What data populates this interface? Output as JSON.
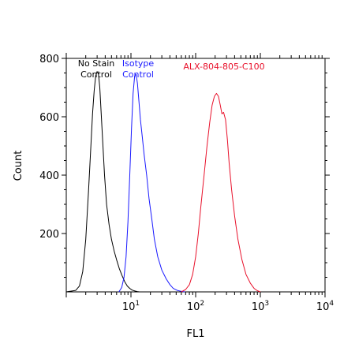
{
  "chart_data": {
    "type": "line",
    "title": "",
    "xlabel": "FL1",
    "ylabel": "Count",
    "x_scale": "log",
    "xlim": [
      1,
      10000
    ],
    "ylim": [
      0,
      800
    ],
    "x_ticks": [
      10,
      100,
      1000,
      10000
    ],
    "y_ticks": [
      200,
      400,
      600,
      800
    ],
    "y_tick_labels": [
      "200",
      "400",
      "600",
      "800"
    ],
    "x_tick_labels": [
      {
        "base": "10",
        "exp": "1"
      },
      {
        "base": "10",
        "exp": "2"
      },
      {
        "base": "10",
        "exp": "3"
      },
      {
        "base": "10",
        "exp": "4"
      }
    ],
    "grid": false,
    "annotations": [
      {
        "lines": [
          "No Stain",
          "Control"
        ],
        "color": "#000000"
      },
      {
        "lines": [
          "Isotype",
          "Control"
        ],
        "color": "#1a1aff"
      },
      {
        "lines": [
          "ALX-804-805-C100"
        ],
        "color": "#e8102a"
      }
    ],
    "series": [
      {
        "color": "#000000",
        "x": [
          1.0,
          1.4,
          1.6,
          1.8,
          2.0,
          2.2,
          2.4,
          2.55,
          2.7,
          2.85,
          3.0,
          3.15,
          3.3,
          3.45,
          3.65,
          3.9,
          4.2,
          4.6,
          5.0,
          5.5,
          6.0,
          6.6,
          7.3,
          8.0,
          8.8,
          9.6,
          10.5,
          11.5,
          12.5,
          13.5
        ],
        "y": [
          0,
          5,
          20,
          70,
          180,
          340,
          500,
          610,
          690,
          740,
          755,
          745,
          700,
          620,
          520,
          400,
          300,
          230,
          180,
          140,
          110,
          80,
          55,
          35,
          20,
          12,
          6,
          3,
          1,
          0
        ]
      },
      {
        "color": "#1a1aff",
        "x": [
          6.5,
          7.2,
          7.8,
          8.4,
          9.0,
          9.6,
          10.2,
          10.8,
          11.4,
          12.0,
          12.6,
          13.3,
          14.0,
          15.0,
          16.0,
          17.5,
          19.0,
          21.0,
          23.0,
          26.0,
          30.0,
          35.0,
          40.0,
          45.0,
          52.0,
          60.0,
          68.0
        ],
        "y": [
          0,
          15,
          50,
          120,
          240,
          400,
          560,
          680,
          740,
          745,
          715,
          650,
          590,
          530,
          470,
          400,
          320,
          250,
          180,
          120,
          75,
          45,
          25,
          12,
          5,
          2,
          0
        ]
      },
      {
        "color": "#e8102a",
        "x": [
          60,
          70,
          80,
          90,
          100,
          110,
          120,
          135,
          150,
          165,
          180,
          195,
          210,
          225,
          240,
          255,
          270,
          290,
          310,
          330,
          360,
          400,
          450,
          520,
          600,
          700,
          800,
          900,
          1000
        ],
        "y": [
          0,
          8,
          25,
          60,
          120,
          200,
          290,
          400,
          500,
          580,
          640,
          670,
          680,
          670,
          640,
          610,
          615,
          590,
          520,
          440,
          350,
          260,
          180,
          110,
          60,
          30,
          12,
          4,
          0
        ]
      }
    ]
  }
}
